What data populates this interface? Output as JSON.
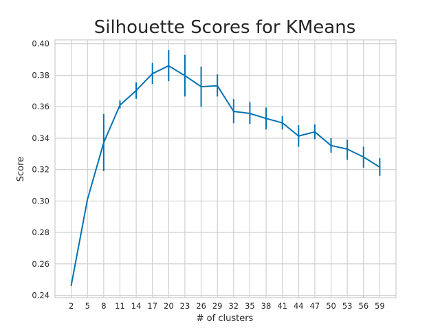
{
  "chart_data": {
    "type": "line",
    "title": "Silhouette Scores for KMeans",
    "xlabel": "# of clusters",
    "ylabel": "Score",
    "x": [
      2,
      5,
      8,
      11,
      14,
      17,
      20,
      23,
      26,
      29,
      32,
      35,
      38,
      41,
      44,
      47,
      50,
      53,
      56,
      59
    ],
    "series": [
      {
        "values": [
          0.2463,
          0.301,
          0.3372,
          0.361,
          0.3703,
          0.381,
          0.386,
          0.3797,
          0.3727,
          0.3733,
          0.357,
          0.3557,
          0.3525,
          0.3497,
          0.3413,
          0.344,
          0.3353,
          0.333,
          0.328,
          0.3215
        ],
        "error_low": [
          null,
          null,
          0.319,
          0.359,
          0.365,
          0.3745,
          0.3762,
          0.3665,
          0.36,
          0.3665,
          0.3495,
          0.349,
          0.3455,
          0.3455,
          0.3345,
          0.3393,
          0.3307,
          0.3262,
          0.3212,
          0.316
        ],
        "error_high": [
          null,
          null,
          0.3553,
          0.364,
          0.3755,
          0.3878,
          0.396,
          0.393,
          0.3855,
          0.3805,
          0.3648,
          0.363,
          0.3595,
          0.354,
          0.3482,
          0.3487,
          0.34,
          0.339,
          0.3345,
          0.3272
        ],
        "color": "#0072b2"
      }
    ],
    "xticks": [
      2,
      5,
      8,
      11,
      14,
      17,
      20,
      23,
      26,
      29,
      32,
      35,
      38,
      41,
      44,
      47,
      50,
      53,
      56,
      59
    ],
    "yticks": [
      0.24,
      0.26,
      0.28,
      0.3,
      0.32,
      0.34,
      0.36,
      0.38,
      0.4
    ],
    "ytick_labels": [
      "0.24",
      "0.26",
      "0.28",
      "0.30",
      "0.32",
      "0.34",
      "0.36",
      "0.38",
      "0.40"
    ],
    "xlim": [
      -1,
      62
    ],
    "ylim": [
      0.2385,
      0.4025
    ],
    "grid": true,
    "grid_color": "#cccccc",
    "legend": false
  }
}
